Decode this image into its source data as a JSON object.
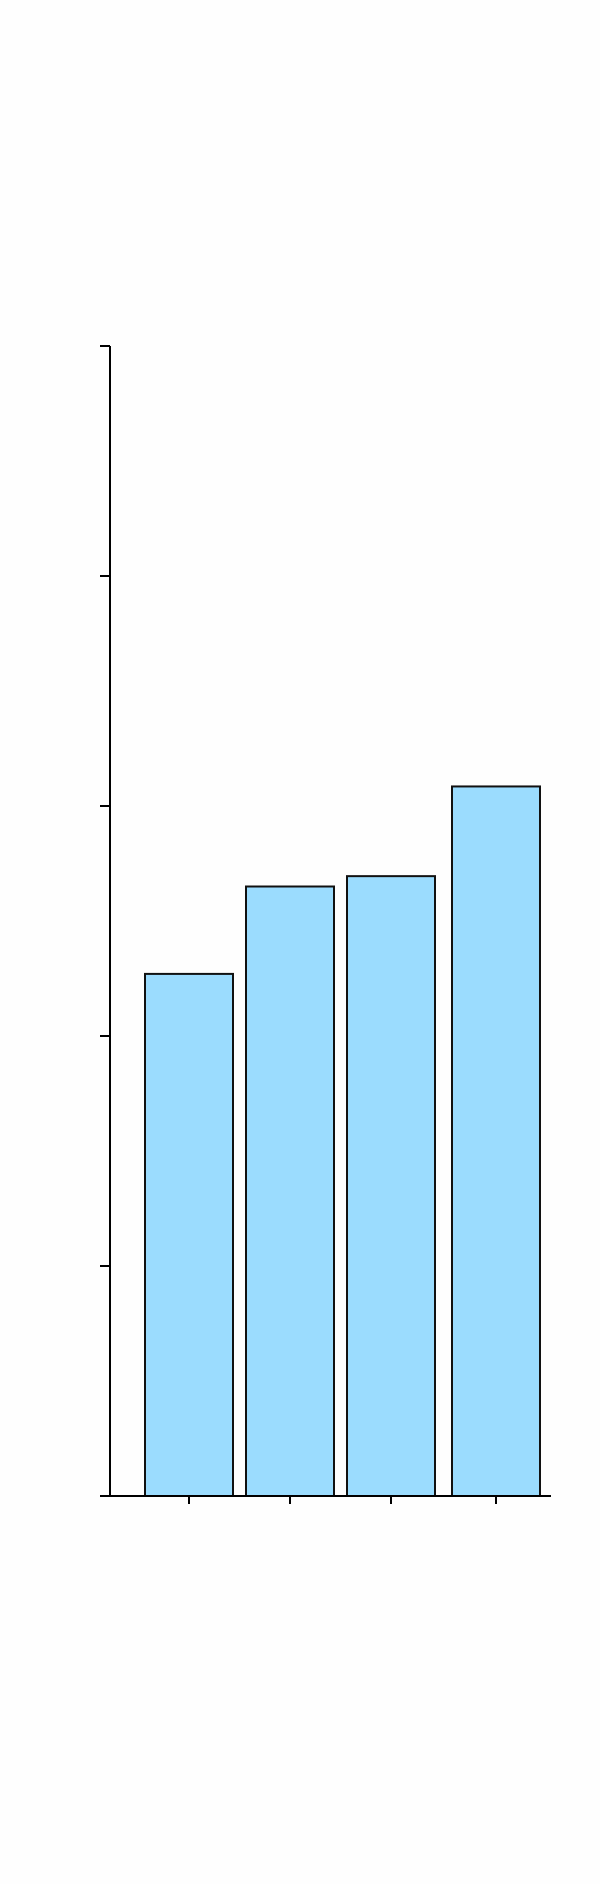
{
  "chart_data": {
    "type": "bar",
    "categories": [
      "",
      "",
      "",
      ""
    ],
    "values": [
      227,
      265,
      269.5,
      308.5
    ],
    "ylim": [
      0,
      500
    ],
    "yticks": [
      0,
      100,
      200,
      300,
      400,
      500
    ],
    "grid": false,
    "legend": "none",
    "title": "",
    "xlabel": "",
    "ylabel": ""
  },
  "colors": {
    "bar_fill": "#9bdcfe",
    "bar_stroke": "#111111",
    "axis": "#000000",
    "background": "#fefefe"
  }
}
